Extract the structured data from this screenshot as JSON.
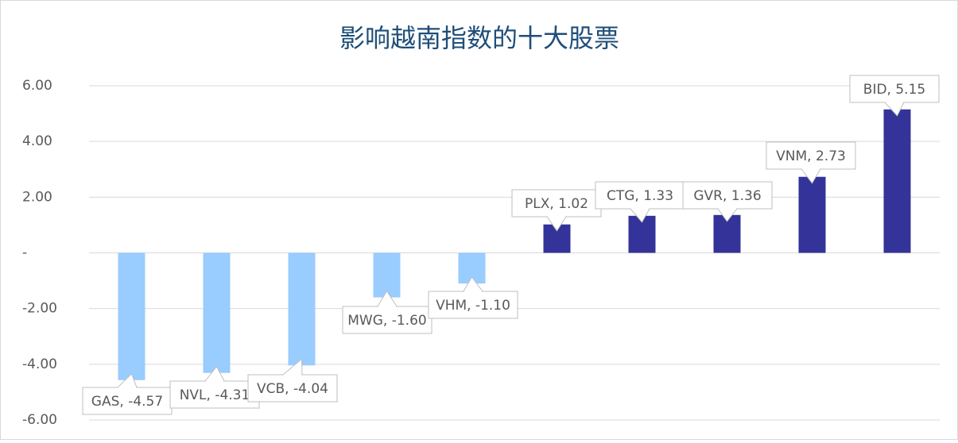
{
  "chart_data": {
    "type": "bar",
    "title": "影响越南指数的十大股票",
    "categories": [
      "GAS",
      "NVL",
      "VCB",
      "MWG",
      "VHM",
      "PLX",
      "CTG",
      "GVR",
      "VNM",
      "BID"
    ],
    "values": [
      -4.57,
      -4.31,
      -4.04,
      -1.6,
      -1.1,
      1.02,
      1.33,
      1.36,
      2.73,
      5.15
    ],
    "value_labels": [
      "GAS, -4.57",
      "NVL, -4.31",
      "VCB, -4.04",
      "MWG, -1.60",
      "VHM, -1.10",
      "PLX, 1.02",
      "CTG, 1.33",
      "GVR, 1.36",
      "VNM, 2.73",
      "BID, 5.15"
    ],
    "colors": [
      "#99ccff",
      "#99ccff",
      "#99ccff",
      "#99ccff",
      "#99ccff",
      "#333399",
      "#333399",
      "#333399",
      "#333399",
      "#333399"
    ],
    "ylim": [
      -6,
      6
    ],
    "yticks": [
      {
        "value": -6,
        "label": "-6.00"
      },
      {
        "value": -4,
        "label": "-4.00"
      },
      {
        "value": -2,
        "label": "-2.00"
      },
      {
        "value": 0,
        "label": "-"
      },
      {
        "value": 2,
        "label": "2.00"
      },
      {
        "value": 4,
        "label": "4.00"
      },
      {
        "value": 6,
        "label": "6.00"
      }
    ],
    "grid": true
  }
}
